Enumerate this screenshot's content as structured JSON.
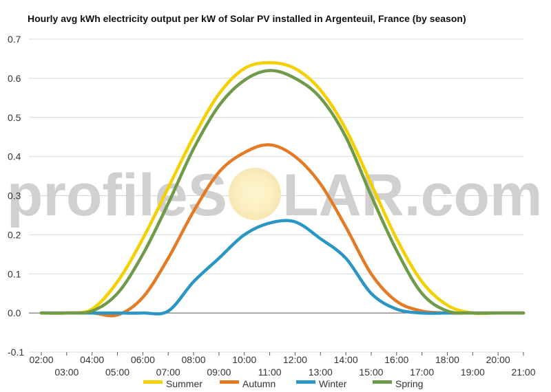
{
  "chart_data": {
    "type": "line",
    "title": "Hourly avg kWh electricity output per kW of Solar PV installed in Argenteuil, France (by season)",
    "xlabel": "",
    "ylabel": "",
    "ylim": [
      -0.1,
      0.7
    ],
    "yticks": [
      "-0.1",
      "0.0",
      "0.1",
      "0.2",
      "0.3",
      "0.4",
      "0.5",
      "0.6",
      "0.7"
    ],
    "grid": true,
    "legend": "bottom",
    "x": [
      "02:00",
      "03:00",
      "04:00",
      "05:00",
      "06:00",
      "07:00",
      "08:00",
      "09:00",
      "10:00",
      "11:00",
      "12:00",
      "13:00",
      "14:00",
      "15:00",
      "16:00",
      "17:00",
      "18:00",
      "19:00",
      "20:00",
      "21:00"
    ],
    "series": [
      {
        "name": "Summer",
        "color": "#f5d000",
        "values": [
          0.0,
          0.0,
          0.01,
          0.08,
          0.19,
          0.32,
          0.45,
          0.56,
          0.625,
          0.64,
          0.625,
          0.57,
          0.47,
          0.33,
          0.19,
          0.08,
          0.02,
          0.0,
          0.0,
          0.0
        ]
      },
      {
        "name": "Autumn",
        "color": "#e57a25",
        "values": [
          0.0,
          0.0,
          0.0,
          -0.005,
          0.04,
          0.14,
          0.26,
          0.36,
          0.41,
          0.43,
          0.4,
          0.33,
          0.22,
          0.1,
          0.03,
          0.005,
          0.0,
          0.0,
          0.0,
          0.0
        ]
      },
      {
        "name": "Winter",
        "color": "#2a96c4",
        "values": [
          0.0,
          0.0,
          0.0,
          0.0,
          0.0,
          0.005,
          0.08,
          0.14,
          0.2,
          0.23,
          0.233,
          0.19,
          0.14,
          0.05,
          0.01,
          0.0,
          0.0,
          0.0,
          0.0,
          0.0
        ]
      },
      {
        "name": "Spring",
        "color": "#6e9a4a",
        "values": [
          0.0,
          0.0,
          0.005,
          0.05,
          0.15,
          0.28,
          0.42,
          0.53,
          0.595,
          0.62,
          0.6,
          0.55,
          0.45,
          0.3,
          0.16,
          0.05,
          0.005,
          0.0,
          0.0,
          0.0
        ]
      }
    ]
  },
  "watermark": {
    "left": "profileS",
    "right": "LAR.com"
  }
}
